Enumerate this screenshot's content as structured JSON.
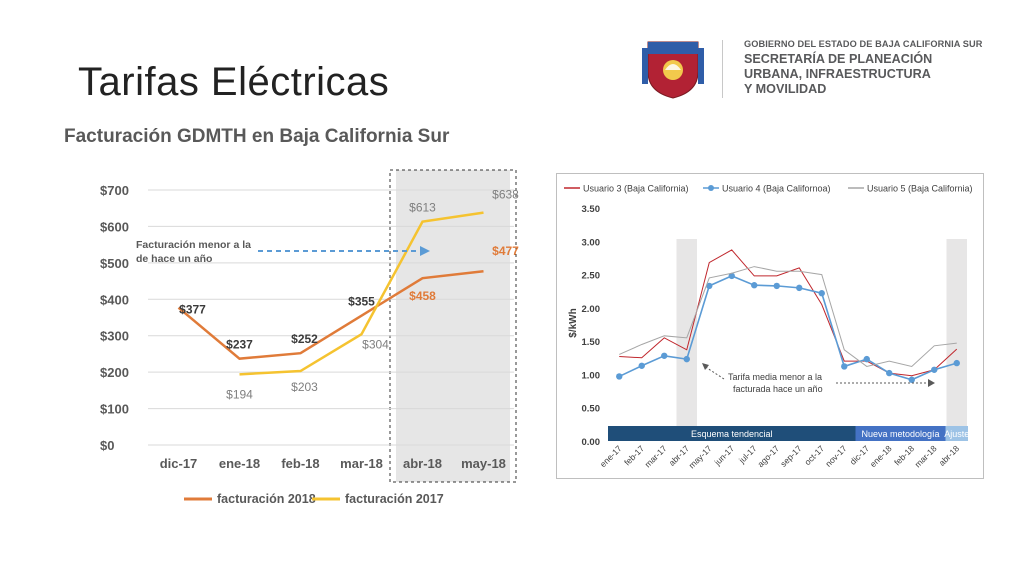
{
  "slide": {
    "title": "Tarifas Eléctricas"
  },
  "logo": {
    "line1": "GOBIERNO DEL ESTADO DE BAJA CALIFORNIA SUR",
    "line2": "SECRETARÍA DE PLANEACIÓN",
    "line3": "URBANA, INFRAESTRUCTURA",
    "line4": "Y MOVILIDAD"
  },
  "chart_data": [
    {
      "type": "line",
      "title": "Facturación GDMTH en Baja California Sur",
      "categories": [
        "dic-17",
        "ene-18",
        "feb-18",
        "mar-18",
        "abr-18",
        "may-18"
      ],
      "ylim": [
        0,
        700
      ],
      "yticks": [
        0,
        100,
        200,
        300,
        400,
        500,
        600,
        700
      ],
      "ytick_labels": [
        "$0",
        "$100",
        "$200",
        "$300",
        "$400",
        "$500",
        "$600",
        "$700"
      ],
      "grid": true,
      "legend_position": "bottom",
      "colors": {
        "facturacion_2018": "#e07b39",
        "facturacion_2017": "#f5c330",
        "highlight": "#e6e6e6"
      },
      "series": [
        {
          "name": "facturación 2018",
          "values": [
            377,
            237,
            252,
            355,
            458,
            477
          ],
          "labels": [
            "$377",
            "$237",
            "$252",
            "$355",
            "$458",
            "$477"
          ]
        },
        {
          "name": "facturación 2017",
          "values": [
            null,
            194,
            203,
            304,
            613,
            638
          ],
          "labels": [
            "",
            "$194",
            "$203",
            "$304",
            "$613",
            "$638"
          ]
        }
      ],
      "annotation": {
        "line1": "Facturación menor a la",
        "line2": "de hace un año"
      }
    },
    {
      "type": "line",
      "categories": [
        "ene-17",
        "feb-17",
        "mar-17",
        "abr-17",
        "may-17",
        "jun-17",
        "jul-17",
        "ago-17",
        "sep-17",
        "oct-17",
        "nov-17",
        "dic-17",
        "ene-18",
        "feb-18",
        "mar-18",
        "abr-18"
      ],
      "ylabel": "$/kWh",
      "ylim": [
        0,
        3.5
      ],
      "yticks": [
        0,
        0.5,
        1,
        1.5,
        2,
        2.5,
        3,
        3.5
      ],
      "ytick_labels": [
        "0.00",
        "0.50",
        "1.00",
        "1.50",
        "2.00",
        "2.50",
        "3.00",
        "3.50"
      ],
      "grid": false,
      "legend_position": "top",
      "colors": {
        "usuario3": "#c0272d",
        "usuario4": "#5b9bd5",
        "usuario5": "#a6a6a6"
      },
      "series": [
        {
          "name": "Usuario 3 (Baja California)",
          "values": [
            1.27,
            1.25,
            1.55,
            1.37,
            2.68,
            2.87,
            2.48,
            2.48,
            2.6,
            2.05,
            1.2,
            1.2,
            1.02,
            0.98,
            1.07,
            1.38
          ]
        },
        {
          "name": "Usuario 4 (Baja Californoa)",
          "values": [
            0.97,
            1.13,
            1.28,
            1.23,
            2.33,
            2.48,
            2.34,
            2.33,
            2.3,
            2.22,
            1.12,
            1.23,
            1.02,
            0.92,
            1.07,
            1.17
          ]
        },
        {
          "name": "Usuario 5 (Baja California)",
          "values": [
            1.3,
            1.45,
            1.58,
            1.55,
            2.45,
            2.52,
            2.62,
            2.55,
            2.55,
            2.5,
            1.37,
            1.12,
            1.2,
            1.12,
            1.43,
            1.47
          ]
        }
      ],
      "bands": [
        {
          "label": "Esquema tendencial",
          "from": 0,
          "to": 10,
          "color": "#1f4e79"
        },
        {
          "label": "Nueva metodología",
          "from": 11,
          "to": 14,
          "color": "#4472c4"
        },
        {
          "label": "Ajuste",
          "from": 15,
          "to": 15,
          "color": "#9dc3e6"
        }
      ],
      "annotation": {
        "line1": "Tarifa media menor a la",
        "line2": "facturada hace un año"
      }
    }
  ]
}
